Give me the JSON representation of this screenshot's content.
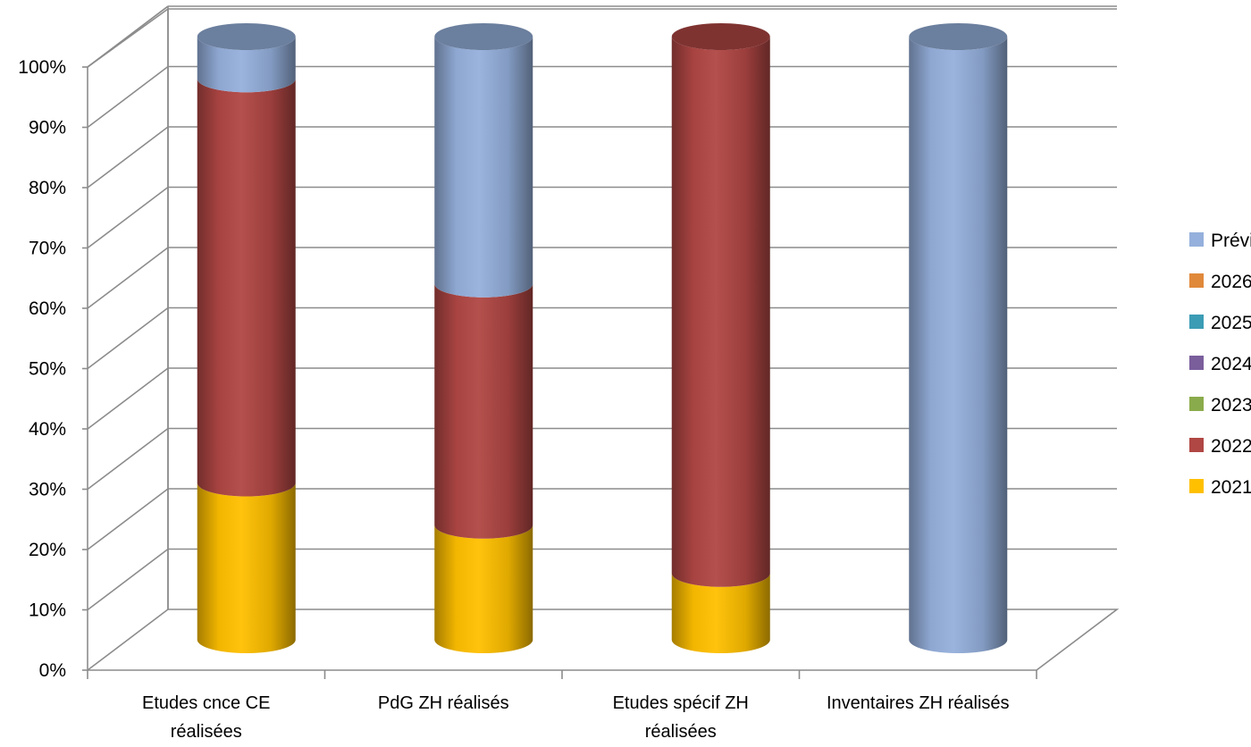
{
  "chart_data": {
    "type": "bar",
    "stacked": true,
    "percent": true,
    "style": "3d-cylinder",
    "title": "",
    "xlabel": "",
    "ylabel": "",
    "ylim": [
      0,
      100
    ],
    "yticks": [
      "0%",
      "10%",
      "20%",
      "30%",
      "40%",
      "50%",
      "60%",
      "70%",
      "80%",
      "90%",
      "100%"
    ],
    "grid": true,
    "legend_position": "right",
    "categories": [
      [
        "Etudes cnce CE",
        "réalisées"
      ],
      [
        "PdG ZH  réalisés"
      ],
      [
        "Etudes spécif ZH",
        "réalisées"
      ],
      [
        "Inventaires ZH réalisés"
      ]
    ],
    "series": [
      {
        "name": "2021",
        "color": "#ffc000",
        "values": [
          26,
          19,
          11,
          0
        ]
      },
      {
        "name": "2022",
        "color": "#b04744",
        "values": [
          67,
          40,
          89,
          0
        ]
      },
      {
        "name": "2023",
        "color": "#8aab4b",
        "values": [
          0,
          0,
          0,
          0
        ]
      },
      {
        "name": "2024",
        "color": "#7a5e9c",
        "values": [
          0,
          0,
          0,
          0
        ]
      },
      {
        "name": "2025",
        "color": "#3b9cb5",
        "values": [
          0,
          0,
          0,
          0
        ]
      },
      {
        "name": "2026",
        "color": "#e0893b",
        "values": [
          0,
          0,
          0,
          0
        ]
      },
      {
        "name": "Prévi",
        "color": "#95b0dc",
        "values": [
          7,
          41,
          0,
          100
        ]
      }
    ],
    "legend_order": [
      "Prévi",
      "2026",
      "2025",
      "2024",
      "2023",
      "2022",
      "2021"
    ]
  }
}
